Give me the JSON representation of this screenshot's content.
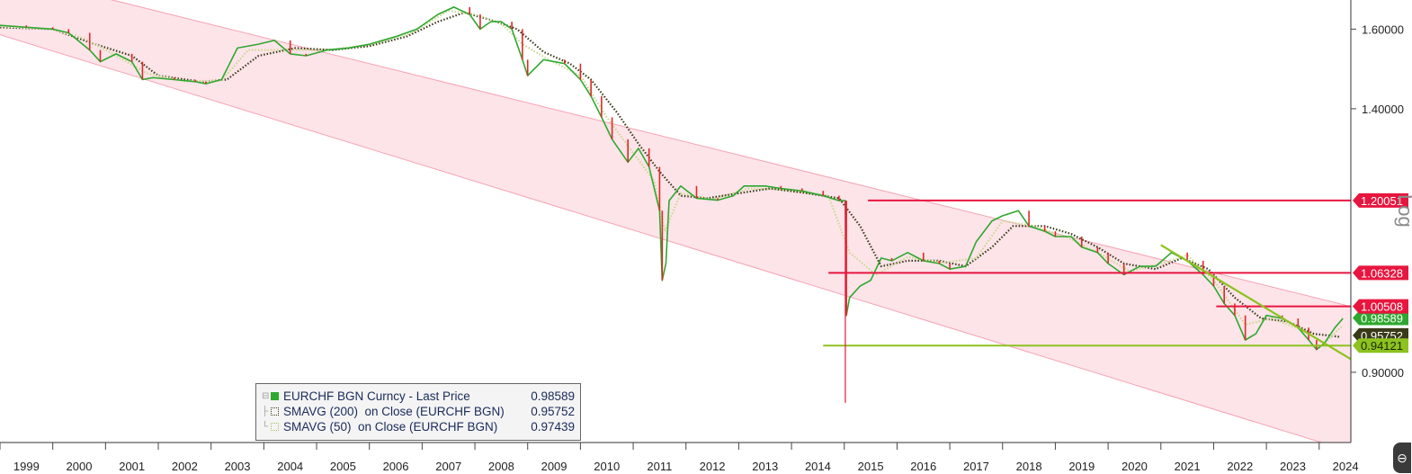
{
  "chart_data": {
    "type": "line",
    "y_scale": "log",
    "ylim": [
      0.8,
      1.68
    ],
    "xlim": [
      1999.0,
      2024.6
    ],
    "x_ticks": [
      "1999",
      "2000",
      "2001",
      "2002",
      "2003",
      "2004",
      "2005",
      "2006",
      "2007",
      "2008",
      "2009",
      "2010",
      "2011",
      "2012",
      "2013",
      "2014",
      "2015",
      "2016",
      "2017",
      "2018",
      "2019",
      "2020",
      "2021",
      "2022",
      "2023",
      "2024"
    ],
    "y_ticks": [
      "1.60000",
      "1.40000",
      "0.90000"
    ],
    "y_tick_values": [
      1.6,
      1.4,
      0.9
    ],
    "log_label": "Log",
    "series": [
      {
        "name": "EURCHF BGN Curncy - Last Price",
        "color": "#2ea82e",
        "points": [
          [
            1999.0,
            1.61
          ],
          [
            1999.5,
            1.605
          ],
          [
            2000.0,
            1.6
          ],
          [
            2000.3,
            1.59
          ],
          [
            2000.7,
            1.545
          ],
          [
            2000.9,
            1.515
          ],
          [
            2001.2,
            1.535
          ],
          [
            2001.5,
            1.515
          ],
          [
            2001.7,
            1.47
          ],
          [
            2001.9,
            1.475
          ],
          [
            2002.3,
            1.47
          ],
          [
            2002.7,
            1.465
          ],
          [
            2002.9,
            1.46
          ],
          [
            2003.2,
            1.47
          ],
          [
            2003.5,
            1.55
          ],
          [
            2003.9,
            1.56
          ],
          [
            2004.2,
            1.57
          ],
          [
            2004.5,
            1.535
          ],
          [
            2004.8,
            1.53
          ],
          [
            2005.2,
            1.545
          ],
          [
            2005.6,
            1.55
          ],
          [
            2006.0,
            1.56
          ],
          [
            2006.5,
            1.58
          ],
          [
            2006.9,
            1.6
          ],
          [
            2007.3,
            1.64
          ],
          [
            2007.6,
            1.66
          ],
          [
            2007.9,
            1.64
          ],
          [
            2008.1,
            1.6
          ],
          [
            2008.3,
            1.62
          ],
          [
            2008.5,
            1.62
          ],
          [
            2008.7,
            1.6
          ],
          [
            2008.9,
            1.52
          ],
          [
            2009.0,
            1.48
          ],
          [
            2009.3,
            1.52
          ],
          [
            2009.7,
            1.51
          ],
          [
            2010.0,
            1.47
          ],
          [
            2010.2,
            1.43
          ],
          [
            2010.4,
            1.38
          ],
          [
            2010.6,
            1.33
          ],
          [
            2010.9,
            1.28
          ],
          [
            2011.1,
            1.31
          ],
          [
            2011.3,
            1.27
          ],
          [
            2011.5,
            1.18
          ],
          [
            2011.55,
            1.05
          ],
          [
            2011.62,
            1.08
          ],
          [
            2011.68,
            1.2
          ],
          [
            2011.9,
            1.23
          ],
          [
            2012.2,
            1.205
          ],
          [
            2012.6,
            1.201
          ],
          [
            2012.9,
            1.21
          ],
          [
            2013.1,
            1.23
          ],
          [
            2013.5,
            1.23
          ],
          [
            2013.8,
            1.225
          ],
          [
            2014.2,
            1.22
          ],
          [
            2014.6,
            1.21
          ],
          [
            2014.9,
            1.2
          ],
          [
            2015.02,
            1.2
          ],
          [
            2015.04,
            0.99
          ],
          [
            2015.1,
            1.02
          ],
          [
            2015.3,
            1.04
          ],
          [
            2015.5,
            1.05
          ],
          [
            2015.7,
            1.09
          ],
          [
            2015.9,
            1.085
          ],
          [
            2016.2,
            1.1
          ],
          [
            2016.5,
            1.085
          ],
          [
            2016.8,
            1.08
          ],
          [
            2017.0,
            1.07
          ],
          [
            2017.3,
            1.075
          ],
          [
            2017.5,
            1.12
          ],
          [
            2017.8,
            1.16
          ],
          [
            2018.0,
            1.17
          ],
          [
            2018.3,
            1.18
          ],
          [
            2018.5,
            1.15
          ],
          [
            2018.8,
            1.14
          ],
          [
            2019.0,
            1.13
          ],
          [
            2019.3,
            1.13
          ],
          [
            2019.5,
            1.11
          ],
          [
            2019.8,
            1.1
          ],
          [
            2020.0,
            1.08
          ],
          [
            2020.3,
            1.06
          ],
          [
            2020.6,
            1.075
          ],
          [
            2020.9,
            1.075
          ],
          [
            2021.2,
            1.1
          ],
          [
            2021.5,
            1.085
          ],
          [
            2021.8,
            1.06
          ],
          [
            2022.0,
            1.04
          ],
          [
            2022.2,
            1.01
          ],
          [
            2022.4,
            0.99
          ],
          [
            2022.6,
            0.95
          ],
          [
            2022.8,
            0.96
          ],
          [
            2023.0,
            0.99
          ],
          [
            2023.3,
            0.985
          ],
          [
            2023.6,
            0.97
          ],
          [
            2023.8,
            0.95
          ],
          [
            2023.95,
            0.935
          ],
          [
            2024.1,
            0.945
          ],
          [
            2024.3,
            0.97
          ],
          [
            2024.45,
            0.985
          ]
        ]
      },
      {
        "name": "SMAVG (200)  on Close (EURCHF BGN)",
        "color": "#3a3a1a",
        "dotted": true,
        "points": [
          [
            1999.0,
            1.605
          ],
          [
            2000.0,
            1.6
          ],
          [
            2000.8,
            1.56
          ],
          [
            2001.5,
            1.53
          ],
          [
            2002.0,
            1.48
          ],
          [
            2002.8,
            1.465
          ],
          [
            2003.3,
            1.47
          ],
          [
            2003.9,
            1.53
          ],
          [
            2004.6,
            1.55
          ],
          [
            2005.3,
            1.545
          ],
          [
            2006.0,
            1.555
          ],
          [
            2006.7,
            1.58
          ],
          [
            2007.3,
            1.62
          ],
          [
            2007.8,
            1.645
          ],
          [
            2008.3,
            1.625
          ],
          [
            2008.8,
            1.6
          ],
          [
            2009.3,
            1.54
          ],
          [
            2009.8,
            1.51
          ],
          [
            2010.2,
            1.47
          ],
          [
            2010.7,
            1.39
          ],
          [
            2011.1,
            1.32
          ],
          [
            2011.5,
            1.26
          ],
          [
            2011.9,
            1.21
          ],
          [
            2012.4,
            1.205
          ],
          [
            2013.0,
            1.215
          ],
          [
            2013.6,
            1.225
          ],
          [
            2014.3,
            1.215
          ],
          [
            2014.9,
            1.205
          ],
          [
            2015.3,
            1.15
          ],
          [
            2015.7,
            1.075
          ],
          [
            2016.2,
            1.085
          ],
          [
            2016.8,
            1.085
          ],
          [
            2017.3,
            1.075
          ],
          [
            2017.8,
            1.11
          ],
          [
            2018.2,
            1.15
          ],
          [
            2018.8,
            1.15
          ],
          [
            2019.3,
            1.135
          ],
          [
            2019.8,
            1.11
          ],
          [
            2020.3,
            1.08
          ],
          [
            2020.9,
            1.07
          ],
          [
            2021.4,
            1.09
          ],
          [
            2021.9,
            1.07
          ],
          [
            2022.4,
            1.02
          ],
          [
            2022.9,
            0.985
          ],
          [
            2023.4,
            0.98
          ],
          [
            2023.9,
            0.96
          ],
          [
            2024.4,
            0.955
          ]
        ]
      },
      {
        "name": "SMAVG (50)  on Close (EURCHF BGN)",
        "color": "#c8d890",
        "dotted": true,
        "points": [
          [
            1999.0,
            1.608
          ],
          [
            2000.0,
            1.6
          ],
          [
            2000.6,
            1.575
          ],
          [
            2001.2,
            1.53
          ],
          [
            2001.8,
            1.485
          ],
          [
            2002.5,
            1.466
          ],
          [
            2003.2,
            1.468
          ],
          [
            2003.7,
            1.545
          ],
          [
            2004.4,
            1.545
          ],
          [
            2005.2,
            1.545
          ],
          [
            2006.0,
            1.558
          ],
          [
            2006.8,
            1.59
          ],
          [
            2007.5,
            1.65
          ],
          [
            2008.0,
            1.64
          ],
          [
            2008.5,
            1.615
          ],
          [
            2008.9,
            1.56
          ],
          [
            2009.4,
            1.52
          ],
          [
            2010.0,
            1.48
          ],
          [
            2010.5,
            1.38
          ],
          [
            2011.0,
            1.3
          ],
          [
            2011.4,
            1.24
          ],
          [
            2011.6,
            1.14
          ],
          [
            2011.9,
            1.215
          ],
          [
            2012.5,
            1.203
          ],
          [
            2013.2,
            1.225
          ],
          [
            2013.9,
            1.222
          ],
          [
            2014.7,
            1.21
          ],
          [
            2015.1,
            1.1
          ],
          [
            2015.6,
            1.06
          ],
          [
            2016.2,
            1.092
          ],
          [
            2016.9,
            1.082
          ],
          [
            2017.5,
            1.09
          ],
          [
            2018.0,
            1.16
          ],
          [
            2018.6,
            1.15
          ],
          [
            2019.3,
            1.125
          ],
          [
            2019.9,
            1.095
          ],
          [
            2020.4,
            1.066
          ],
          [
            2021.0,
            1.08
          ],
          [
            2021.5,
            1.095
          ],
          [
            2022.0,
            1.05
          ],
          [
            2022.6,
            0.975
          ],
          [
            2023.1,
            0.985
          ],
          [
            2023.7,
            0.965
          ],
          [
            2024.1,
            0.945
          ],
          [
            2024.45,
            0.974
          ]
        ]
      }
    ],
    "channel": {
      "upper_start": [
        1999.0,
        1.76
      ],
      "upper_end": [
        2024.6,
        1.005
      ],
      "lower_start": [
        1999.0,
        1.585
      ],
      "lower_end": [
        2024.6,
        0.788
      ]
    },
    "horizontal_lines": [
      {
        "value": 1.20051,
        "x_start": 2015.45,
        "color": "#e8163f",
        "label": "1.20051"
      },
      {
        "value": 1.06328,
        "x_start": 2014.7,
        "color": "#e8163f",
        "label": "1.06328"
      },
      {
        "value": 1.00508,
        "x_start": 2022.05,
        "color": "#e8163f",
        "label": "1.00508"
      },
      {
        "value": 0.94121,
        "x_start": 2014.6,
        "color": "#8dc21f",
        "label": "0.94121"
      }
    ],
    "trend_line": {
      "start": [
        2021.0,
        1.114
      ],
      "end": [
        2024.6,
        0.92
      ],
      "color": "#8dc21f"
    },
    "vertical_line": {
      "x": 2015.02,
      "y_top": 1.2,
      "y_bottom": 0.855,
      "color": "#e8163f"
    },
    "value_tags": [
      {
        "label": "0.98589",
        "value": 0.98589,
        "color": "#2ea82e"
      },
      {
        "label": "0.95752",
        "value": 0.95752,
        "color": "#3a3a1a"
      }
    ]
  },
  "legend": {
    "rows": [
      {
        "label": "EURCHF BGN Curncy - Last Price",
        "value": "0.98589",
        "swatch": "#2ea82e",
        "swatch_style": "solid"
      },
      {
        "label": "SMAVG (200)  on Close (EURCHF BGN)",
        "value": "0.95752",
        "swatch": "#3a3a1a",
        "swatch_style": "dotted"
      },
      {
        "label": "SMAVG (50)  on Close (EURCHF BGN)",
        "value": "0.97439",
        "swatch": "#c8d890",
        "swatch_style": "dotted"
      }
    ]
  }
}
